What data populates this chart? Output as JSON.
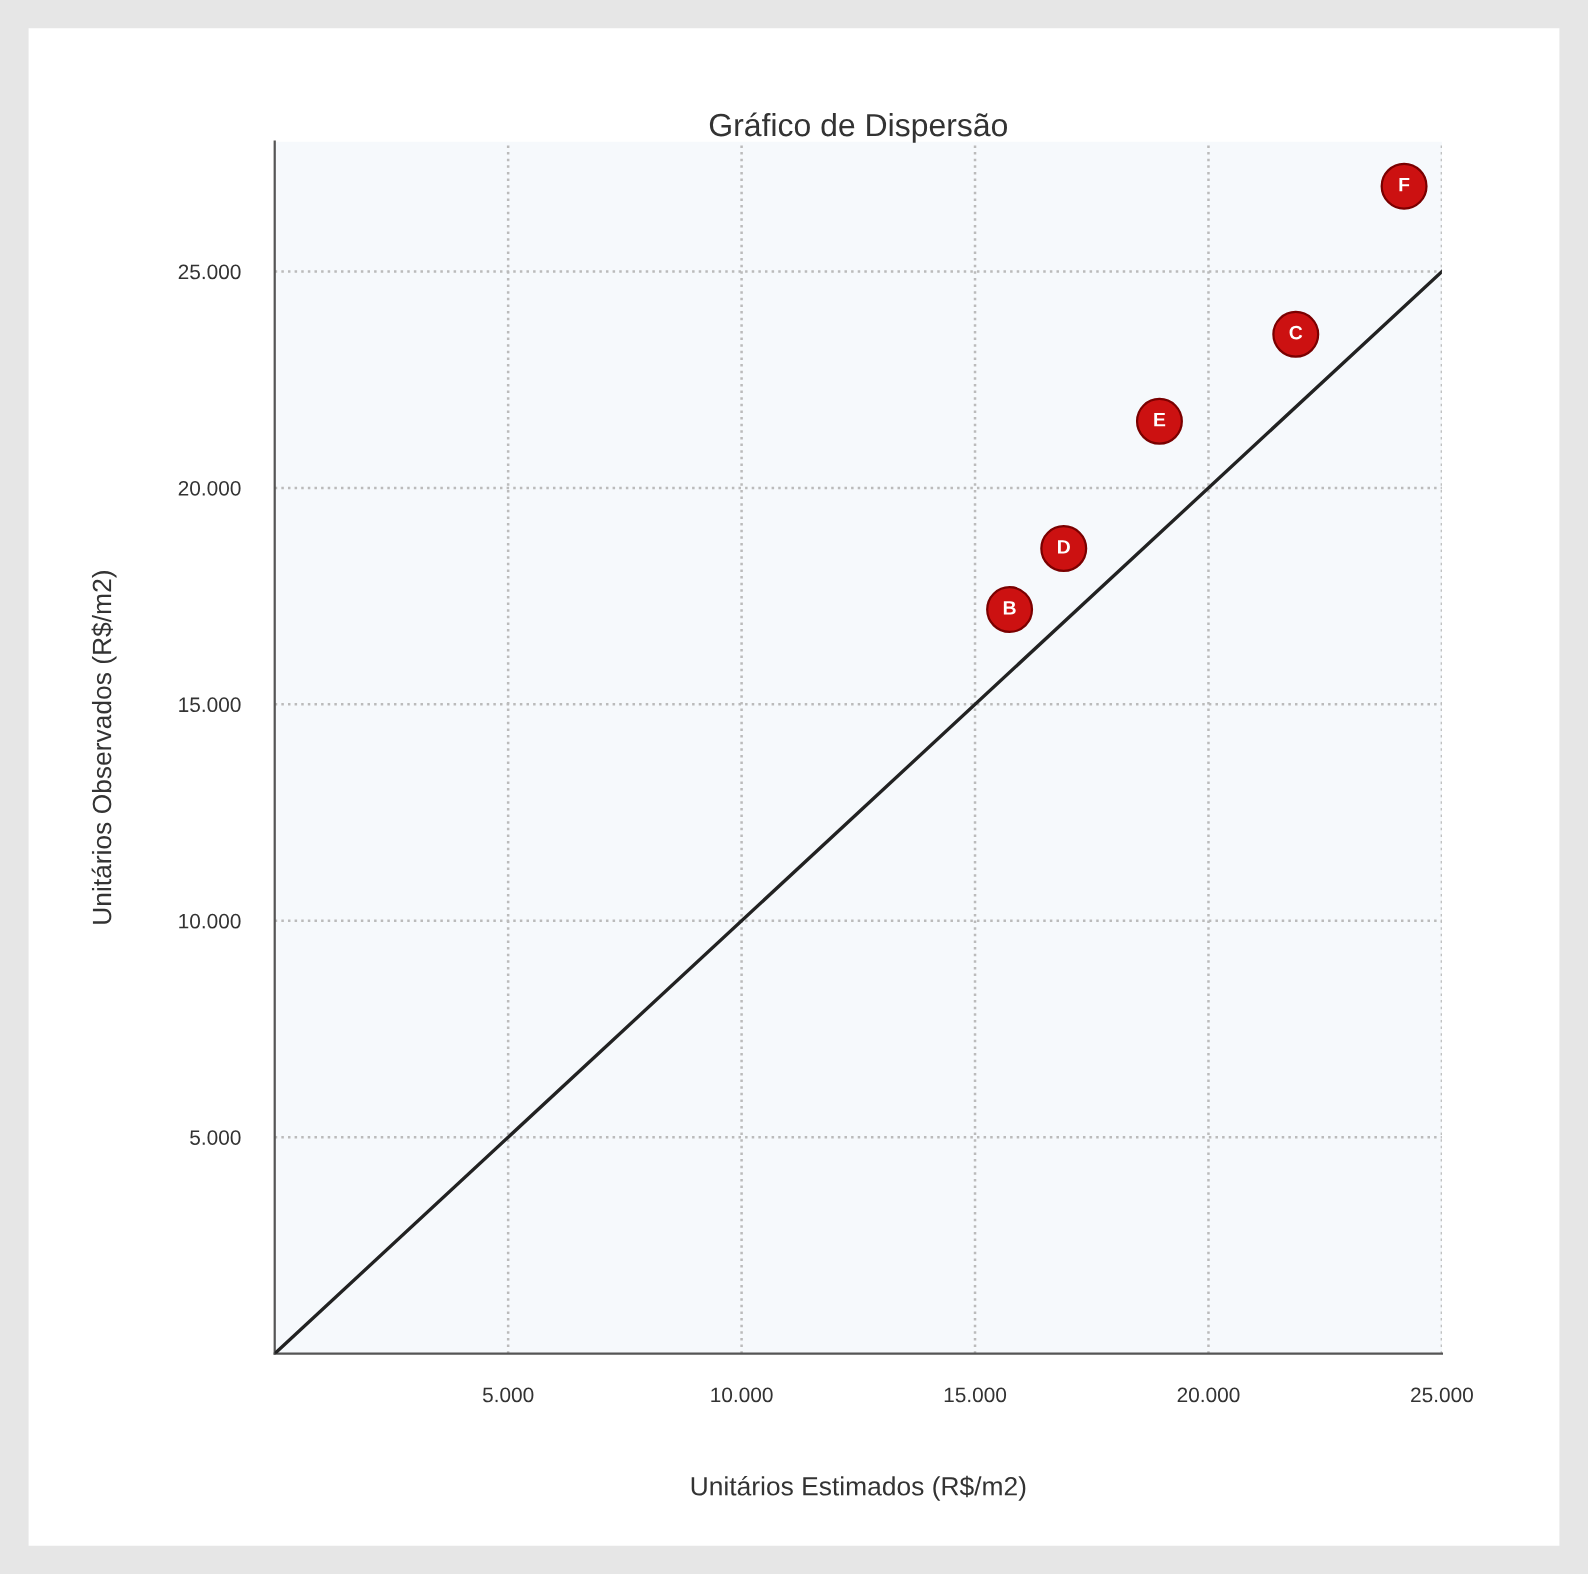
{
  "chart_data": {
    "type": "scatter",
    "title": "Gráfico de Dispersão",
    "xlabel": "Unitários Estimados (R$/m2)",
    "ylabel": "Unitários Observados (R$/m2)",
    "xlim": [
      0,
      25000
    ],
    "ylim": [
      0,
      28000
    ],
    "xticks": [
      {
        "value": 5000,
        "label": "5.000"
      },
      {
        "value": 10000,
        "label": "10.000"
      },
      {
        "value": 15000,
        "label": "15.000"
      },
      {
        "value": 20000,
        "label": "20.000"
      },
      {
        "value": 25000,
        "label": "25.000"
      }
    ],
    "yticks": [
      {
        "value": 5000,
        "label": "5.000"
      },
      {
        "value": 10000,
        "label": "10.000"
      },
      {
        "value": 15000,
        "label": "15.000"
      },
      {
        "value": 20000,
        "label": "20.000"
      },
      {
        "value": 25000,
        "label": "25.000"
      }
    ],
    "grid": true,
    "marker": "circle",
    "series": [
      {
        "type": "line",
        "color": "#222222",
        "x": [
          0,
          25000
        ],
        "values": [
          0,
          25000
        ],
        "marker": "none",
        "line_style": "solid"
      },
      {
        "color": "#cc1111",
        "x": [
          15740,
          16900,
          18950,
          21870,
          24190
        ],
        "values": [
          17190,
          18600,
          21540,
          23550,
          26970
        ]
      }
    ],
    "annotations": [
      {
        "text": "B",
        "x": 15740,
        "y": 17190
      },
      {
        "text": "D",
        "x": 16900,
        "y": 18600
      },
      {
        "text": "E",
        "x": 18950,
        "y": 21540
      },
      {
        "text": "C",
        "x": 21870,
        "y": 23550
      },
      {
        "text": "F",
        "x": 24190,
        "y": 26970
      }
    ]
  }
}
